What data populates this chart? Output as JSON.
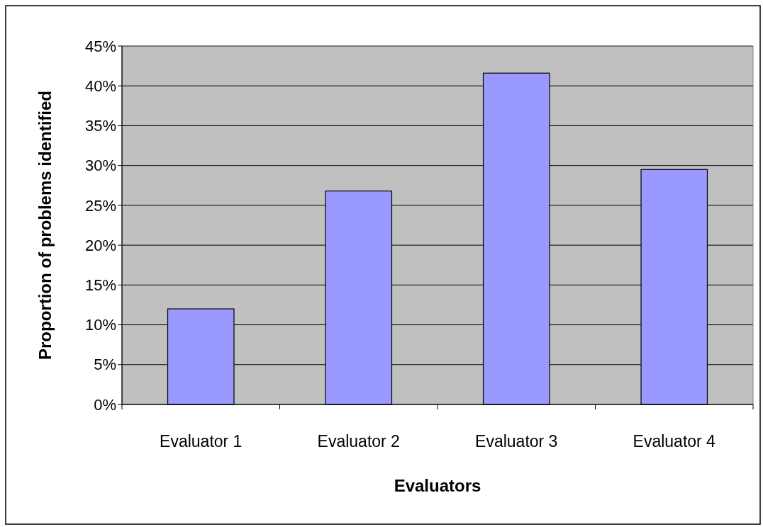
{
  "chart_data": {
    "type": "bar",
    "xlabel": "Evaluators",
    "ylabel": "Proportion of problems identified",
    "categories": [
      "Evaluator 1",
      "Evaluator 2",
      "Evaluator 3",
      "Evaluator 4"
    ],
    "values": [
      12,
      26.8,
      41.6,
      29.5
    ],
    "color": "#9999ff",
    "ylim": [
      0,
      45
    ],
    "yticks": [
      {
        "value": 0,
        "label": "0%"
      },
      {
        "value": 5,
        "label": "5%"
      },
      {
        "value": 10,
        "label": "10%"
      },
      {
        "value": 15,
        "label": "15%"
      },
      {
        "value": 20,
        "label": "20%"
      },
      {
        "value": 25,
        "label": "25%"
      },
      {
        "value": 30,
        "label": "30%"
      },
      {
        "value": 35,
        "label": "35%"
      },
      {
        "value": 40,
        "label": "40%"
      },
      {
        "value": 45,
        "label": "45%"
      }
    ],
    "grid": "y"
  }
}
